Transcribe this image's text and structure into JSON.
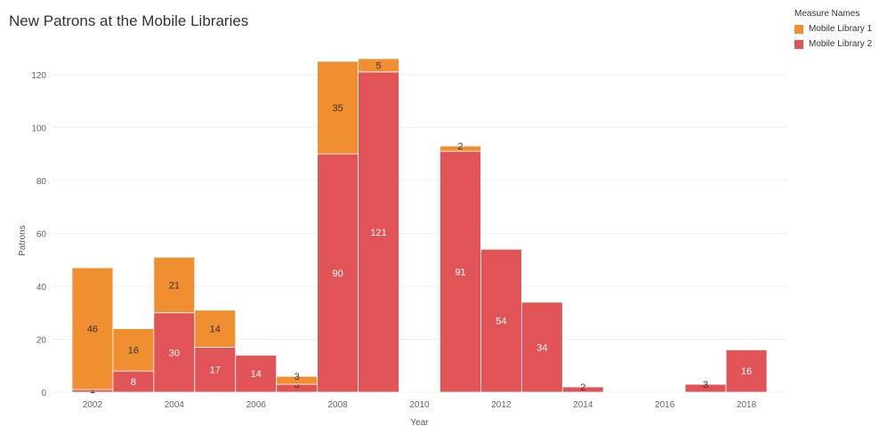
{
  "title": "New Patrons at the Mobile Libraries",
  "legend": {
    "title": "Measure Names",
    "items": [
      {
        "label": "Mobile Library 1",
        "color": "#f08f30"
      },
      {
        "label": "Mobile Library 2",
        "color": "#e05458"
      }
    ]
  },
  "chart_data": {
    "type": "bar",
    "stacked": true,
    "title": "New Patrons at the Mobile Libraries",
    "xlabel": "Year",
    "ylabel": "Patrons",
    "ylim": [
      0,
      128
    ],
    "yticks": [
      0,
      20,
      40,
      60,
      80,
      100,
      120
    ],
    "xticks": [
      2002,
      2004,
      2006,
      2008,
      2010,
      2012,
      2014,
      2016,
      2018
    ],
    "x": [
      2002,
      2003,
      2004,
      2005,
      2006,
      2007,
      2008,
      2009,
      2010,
      2011,
      2012,
      2013,
      2014,
      2015,
      2016,
      2017,
      2018
    ],
    "series": [
      {
        "name": "Mobile Library 2",
        "color": "#e05458",
        "values": [
          1,
          8,
          30,
          17,
          14,
          3,
          90,
          121,
          0,
          91,
          54,
          34,
          2,
          0,
          0,
          3,
          16
        ]
      },
      {
        "name": "Mobile Library 1",
        "color": "#f08f30",
        "values": [
          46,
          16,
          21,
          14,
          0,
          3,
          35,
          5,
          0,
          2,
          0,
          0,
          0,
          0,
          0,
          0,
          0
        ]
      }
    ],
    "grid": true,
    "legend_position": "top-right"
  }
}
